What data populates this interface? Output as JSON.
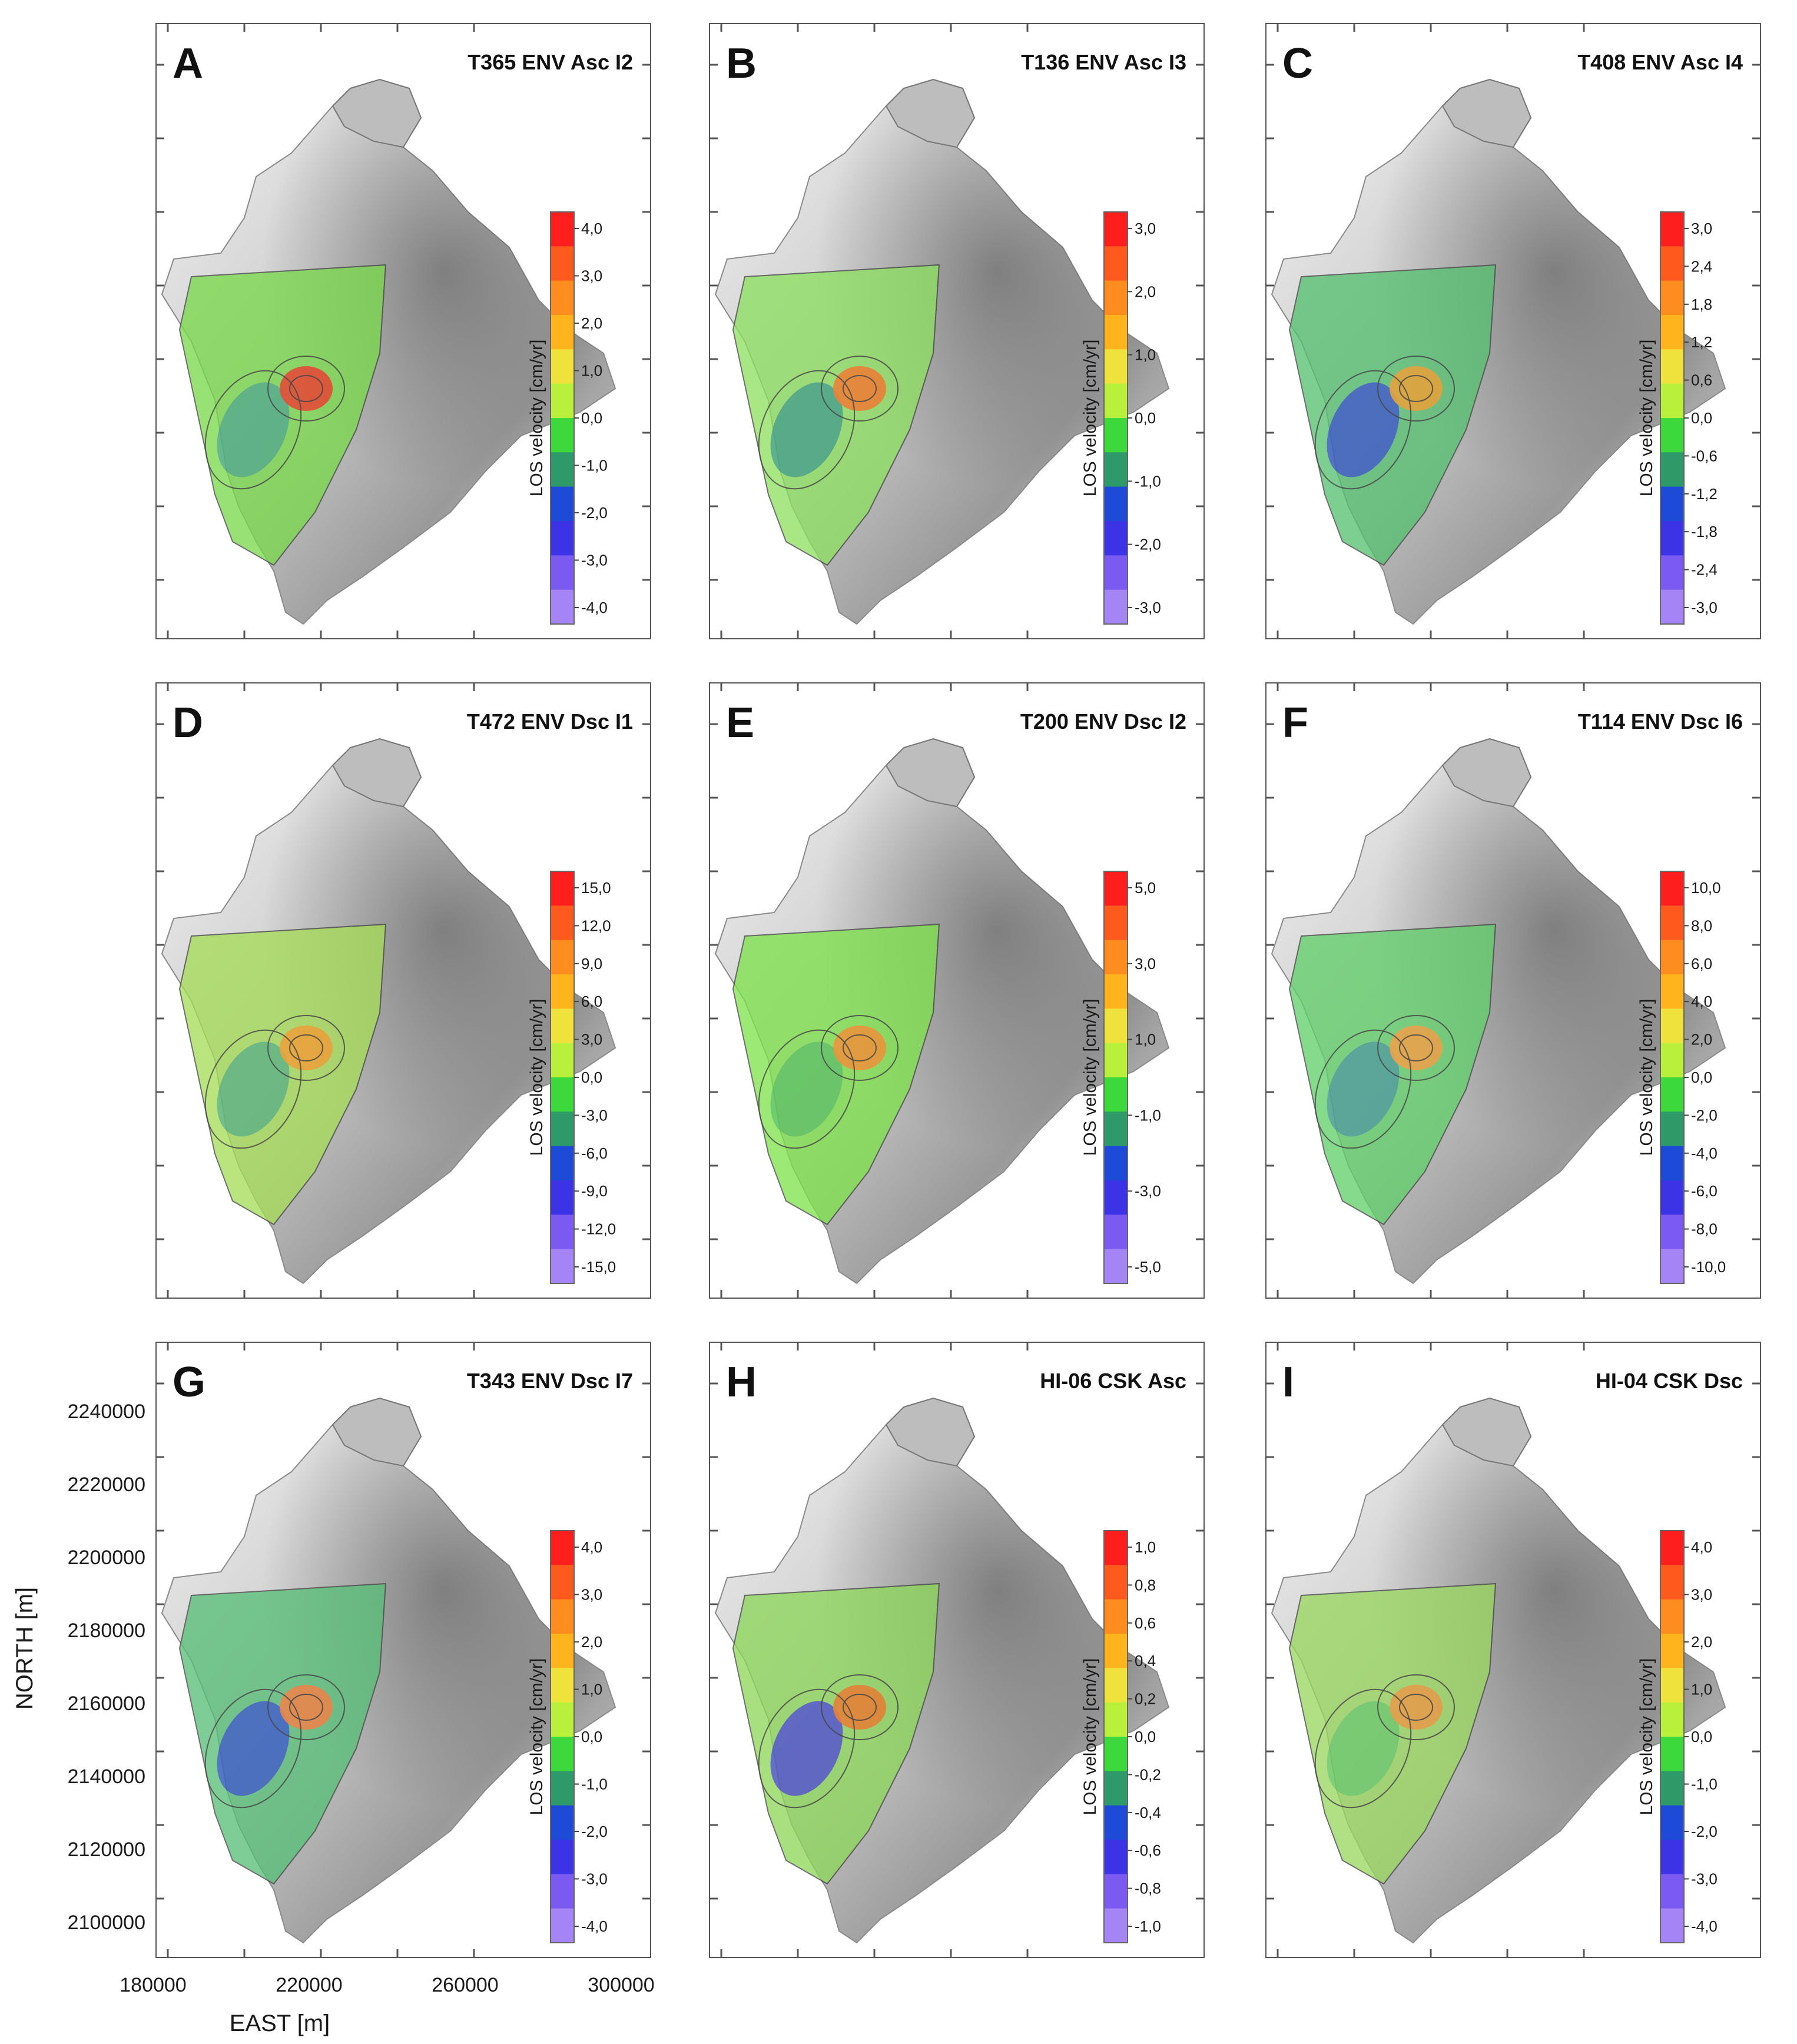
{
  "figure": {
    "axes": {
      "x_label": "EAST [m]",
      "y_label": "NORTH [m]",
      "x_ticks": [
        "180000",
        "220000",
        "260000",
        "300000"
      ],
      "y_ticks": [
        "2100000",
        "2120000",
        "2140000",
        "2160000",
        "2180000",
        "2200000",
        "2220000",
        "2240000"
      ]
    },
    "colorbar_title": "LOS velocity [cm/yr]",
    "panels": [
      {
        "letter": "A",
        "title": "T365 ENV Asc I2",
        "colorbar_labels": [
          "4,0",
          "3,0",
          "2,0",
          "1,0",
          "0,0",
          "-1,0",
          "-2,0",
          "-3,0",
          "-4,0"
        ],
        "base_color": "#7ad94a",
        "hotspot_color": "#e8402a",
        "lobe_color": "#4fa888"
      },
      {
        "letter": "B",
        "title": "T136 ENV Asc I3",
        "colorbar_labels": [
          "3,0",
          "2,0",
          "1,0",
          "0,0",
          "-1,0",
          "-2,0",
          "-3,0"
        ],
        "base_color": "#8ee060",
        "hotspot_color": "#f07a2a",
        "lobe_color": "#3f9f86"
      },
      {
        "letter": "C",
        "title": "T408 ENV Asc I4",
        "colorbar_labels": [
          "3,0",
          "2,4",
          "1,8",
          "1,2",
          "0,6",
          "0,0",
          "-0,6",
          "-1,2",
          "-1,8",
          "-2,4",
          "-3,0"
        ],
        "base_color": "#55c070",
        "hotspot_color": "#e8a030",
        "lobe_color": "#3a55c8"
      },
      {
        "letter": "D",
        "title": "T472 ENV Dsc I1",
        "colorbar_labels": [
          "15,0",
          "12,0",
          "9,0",
          "6,0",
          "3,0",
          "0,0",
          "-3,0",
          "-6,0",
          "-9,0",
          "-12,0",
          "-15,0"
        ],
        "base_color": "#a6dc58",
        "hotspot_color": "#f0a030",
        "lobe_color": "#58b080"
      },
      {
        "letter": "E",
        "title": "T200 ENV Dsc I2",
        "colorbar_labels": [
          "5,0",
          "3,0",
          "1,0",
          "-1,0",
          "-3,0",
          "-5,0"
        ],
        "base_color": "#7ee24c",
        "hotspot_color": "#f09030",
        "lobe_color": "#5ac060"
      },
      {
        "letter": "F",
        "title": "T114 ENV Dsc I6",
        "colorbar_labels": [
          "10,0",
          "8,0",
          "6,0",
          "4,0",
          "2,0",
          "0,0",
          "-2,0",
          "-4,0",
          "-6,0",
          "-8,0",
          "-10,0"
        ],
        "base_color": "#62cf6a",
        "hotspot_color": "#f0a040",
        "lobe_color": "#4b9a9a"
      },
      {
        "letter": "G",
        "title": "T343 ENV Dsc I7",
        "colorbar_labels": [
          "4,0",
          "3,0",
          "2,0",
          "1,0",
          "0,0",
          "-1,0",
          "-2,0",
          "-3,0",
          "-4,0"
        ],
        "base_color": "#58bf78",
        "hotspot_color": "#f08040",
        "lobe_color": "#3a58c8"
      },
      {
        "letter": "H",
        "title": "HI-06 CSK Asc",
        "colorbar_labels": [
          "1,0",
          "0,8",
          "0,6",
          "0,4",
          "0,2",
          "0,0",
          "-0,2",
          "-0,4",
          "-0,6",
          "-0,8",
          "-1,0"
        ],
        "base_color": "#8ed85a",
        "hotspot_color": "#e87a2a",
        "lobe_color": "#4a4ad0"
      },
      {
        "letter": "I",
        "title": "HI-04 CSK Dsc",
        "colorbar_labels": [
          "4,0",
          "3,0",
          "2,0",
          "1,0",
          "0,0",
          "-1,0",
          "-2,0",
          "-3,0",
          "-4,0"
        ],
        "base_color": "#9ad860",
        "hotspot_color": "#e89a40",
        "lobe_color": "#6ac86a"
      }
    ],
    "colorbar_colors": [
      "#ff1e1e",
      "#ff5a1e",
      "#ff8c1e",
      "#ffb41e",
      "#f0e23c",
      "#b8f03c",
      "#3cd83c",
      "#2e9a6a",
      "#1e4ad8",
      "#3c32e6",
      "#7a5af0",
      "#a585f5"
    ]
  }
}
